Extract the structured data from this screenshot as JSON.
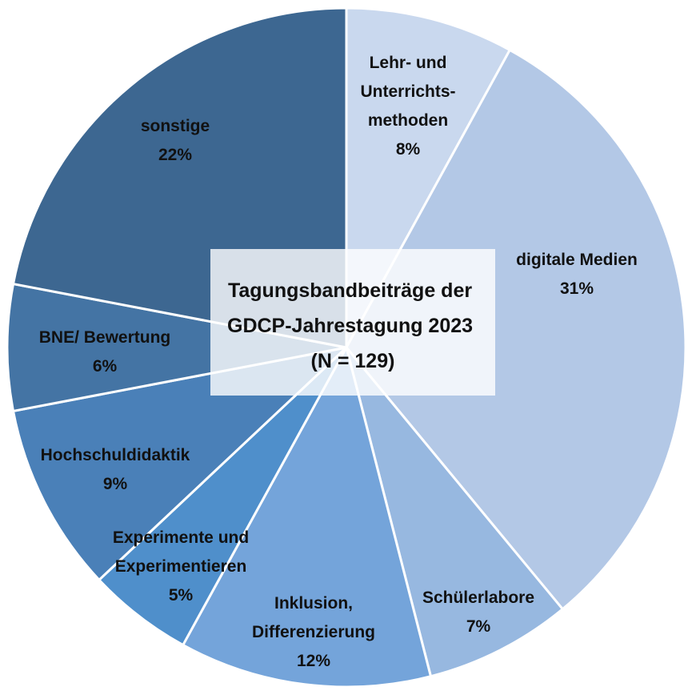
{
  "chart_data": {
    "type": "pie",
    "title_lines": [
      "Tagungsbandbeiträge der",
      "GDCP-Jahrestagung 2023",
      "(N = 129)"
    ],
    "start": "12 o'clock, clockwise",
    "slices": [
      {
        "label_lines": [
          "Lehr- und",
          "Unterrichts-",
          "methoden"
        ],
        "percent_text": "8%",
        "value": 8,
        "color": "#c9d8ee"
      },
      {
        "label_lines": [
          "digitale Medien"
        ],
        "percent_text": "31%",
        "value": 31,
        "color": "#b3c8e6"
      },
      {
        "label_lines": [
          "Schülerlabore"
        ],
        "percent_text": "7%",
        "value": 7,
        "color": "#97b8e0"
      },
      {
        "label_lines": [
          "Inklusion,",
          "Differenzierung"
        ],
        "percent_text": "12%",
        "value": 12,
        "color": "#74a4da"
      },
      {
        "label_lines": [
          "Experimente und",
          "Experimentieren"
        ],
        "percent_text": "5%",
        "value": 5,
        "color": "#4f8fcb"
      },
      {
        "label_lines": [
          "Hochschuldidaktik"
        ],
        "percent_text": "9%",
        "value": 9,
        "color": "#4a80b8"
      },
      {
        "label_lines": [
          "BNE/ Bewertung"
        ],
        "percent_text": "6%",
        "value": 6,
        "color": "#4474a4"
      },
      {
        "label_lines": [
          "sonstige"
        ],
        "percent_text": "22%",
        "value": 22,
        "color": "#3d6791"
      }
    ]
  }
}
